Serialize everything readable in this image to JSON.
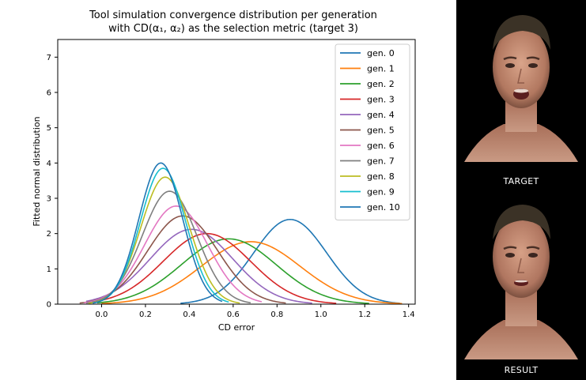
{
  "figure": {
    "title_line1": "Tool simulation convergence distribution per generation",
    "title_line2": "with CD(α₁, α₂) as the selection metric (target 3)"
  },
  "chart_data": {
    "type": "line",
    "xlabel": "CD error",
    "ylabel": "Fitted normal distribution",
    "xlim": [
      -0.2,
      1.43
    ],
    "ylim": [
      0,
      7.5
    ],
    "xticks": [
      "0.0",
      "0.2",
      "0.4",
      "0.6",
      "0.8",
      "1.0",
      "1.2",
      "1.4"
    ],
    "yticks": [
      "0",
      "1",
      "2",
      "3",
      "4",
      "5",
      "6",
      "7"
    ],
    "legend_position": "top-right",
    "grid": false,
    "series": [
      {
        "name": "gen. 0",
        "color": "#1f77b4",
        "mean": 0.86,
        "peak": 2.4,
        "x_range": [
          0.36,
          1.36
        ]
      },
      {
        "name": "gen. 1",
        "color": "#ff7f0e",
        "mean": 0.68,
        "peak": 1.77,
        "x_range": [
          0.0,
          1.37
        ]
      },
      {
        "name": "gen. 2",
        "color": "#2ca02c",
        "mean": 0.58,
        "peak": 1.85,
        "x_range": [
          -0.02,
          1.22
        ]
      },
      {
        "name": "gen. 3",
        "color": "#d62728",
        "mean": 0.48,
        "peak": 2.0,
        "x_range": [
          -0.05,
          1.07
        ]
      },
      {
        "name": "gen. 4",
        "color": "#9467bd",
        "mean": 0.41,
        "peak": 2.12,
        "x_range": [
          -0.07,
          0.96
        ]
      },
      {
        "name": "gen. 5",
        "color": "#8c564b",
        "mean": 0.37,
        "peak": 2.5,
        "x_range": [
          -0.1,
          0.84
        ]
      },
      {
        "name": "gen. 6",
        "color": "#e377c2",
        "mean": 0.34,
        "peak": 2.78,
        "x_range": [
          -0.08,
          0.73
        ]
      },
      {
        "name": "gen. 7",
        "color": "#7f7f7f",
        "mean": 0.31,
        "peak": 3.2,
        "x_range": [
          -0.07,
          0.68
        ]
      },
      {
        "name": "gen. 8",
        "color": "#bcbd22",
        "mean": 0.29,
        "peak": 3.6,
        "x_range": [
          -0.06,
          0.63
        ]
      },
      {
        "name": "gen. 9",
        "color": "#17becf",
        "mean": 0.28,
        "peak": 3.85,
        "x_range": [
          -0.04,
          0.58
        ]
      },
      {
        "name": "gen. 10",
        "color": "#1f77b4",
        "mean": 0.27,
        "peak": 4.0,
        "x_range": [
          -0.04,
          0.55
        ]
      }
    ]
  },
  "panels": {
    "target_caption": "TARGET",
    "result_caption": "RESULT"
  }
}
